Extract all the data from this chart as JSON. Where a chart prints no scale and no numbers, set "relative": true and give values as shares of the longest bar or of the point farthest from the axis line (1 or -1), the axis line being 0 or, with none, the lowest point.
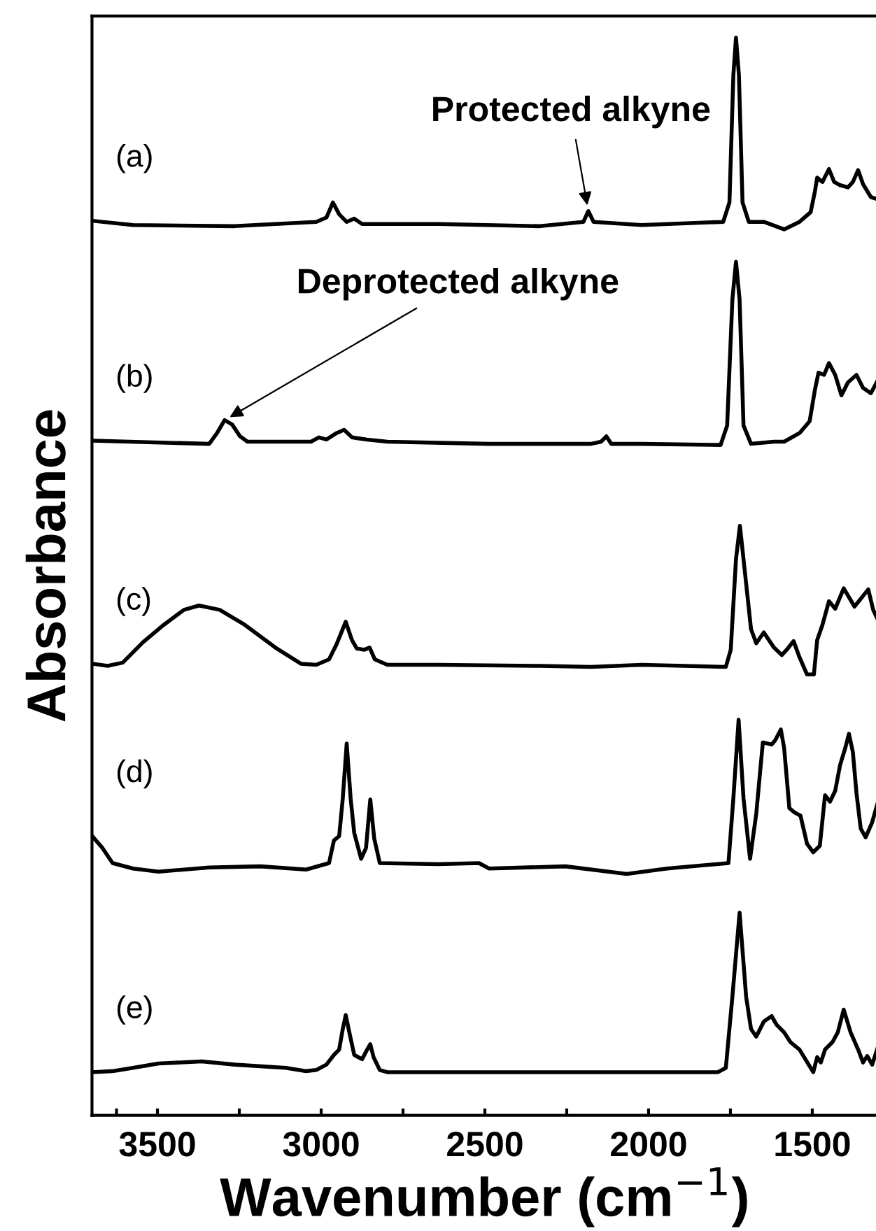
{
  "chart_data": {
    "type": "line",
    "relative": true,
    "xlabel": "Wavenumber (cm$^{−1}$)",
    "ylabel": "Absorbance",
    "xlim": [
      3700,
      1300
    ],
    "xticks": [
      {
        "value": 3625,
        "label": null
      },
      3500,
      {
        "value": 3250,
        "label": null
      },
      3000,
      {
        "value": 2750,
        "label": null
      },
      2500,
      {
        "value": 2250,
        "label": null
      },
      2000,
      {
        "value": 1750,
        "label": null
      },
      1500
    ],
    "tick_labels": "x",
    "grid": false,
    "marker": "none",
    "line_style": "solid",
    "annotations": [
      {
        "text": "Protected alkyne",
        "x": 2184,
        "y": 0.839
      },
      {
        "text": "Deprotected alkyne",
        "x": 3295,
        "y": 0.645
      }
    ],
    "series": [
      {
        "name": "(a)",
        "color": "#000000",
        "x": [
          3699,
          3575,
          3264,
          3015,
          2984,
          2964,
          2945,
          2922,
          2899,
          2875,
          2642,
          2331,
          2199,
          2184,
          2168,
          2021,
          1772,
          1753,
          1741,
          1733,
          1724,
          1713,
          1694,
          1648,
          1586,
          1539,
          1505,
          1492,
          1485,
          1469,
          1449,
          1433,
          1415,
          1391,
          1376,
          1360,
          1345,
          1321,
          1300
        ],
        "values": [
          0.83,
          0.826,
          0.825,
          0.829,
          0.833,
          0.847,
          0.836,
          0.829,
          0.832,
          0.827,
          0.827,
          0.825,
          0.829,
          0.839,
          0.829,
          0.826,
          0.829,
          0.847,
          0.965,
          1.0,
          0.965,
          0.847,
          0.829,
          0.829,
          0.822,
          0.829,
          0.838,
          0.857,
          0.87,
          0.866,
          0.878,
          0.866,
          0.863,
          0.861,
          0.866,
          0.877,
          0.864,
          0.852,
          0.85
        ]
      },
      {
        "name": "(b)",
        "color": "#000000",
        "x": [
          3699,
          3342,
          3318,
          3295,
          3272,
          3248,
          3225,
          3031,
          3007,
          2984,
          2953,
          2930,
          2906,
          2860,
          2798,
          2487,
          2176,
          2145,
          2129,
          2114,
          2021,
          1780,
          1760,
          1744,
          1733,
          1722,
          1710,
          1687,
          1617,
          1586,
          1539,
          1508,
          1492,
          1481,
          1464,
          1449,
          1430,
          1411,
          1391,
          1365,
          1345,
          1321,
          1300
        ],
        "values": [
          0.626,
          0.623,
          0.633,
          0.645,
          0.641,
          0.63,
          0.625,
          0.625,
          0.629,
          0.627,
          0.633,
          0.636,
          0.629,
          0.627,
          0.625,
          0.623,
          0.623,
          0.625,
          0.63,
          0.623,
          0.623,
          0.622,
          0.64,
          0.757,
          0.792,
          0.757,
          0.64,
          0.623,
          0.625,
          0.625,
          0.633,
          0.644,
          0.673,
          0.689,
          0.687,
          0.698,
          0.687,
          0.668,
          0.68,
          0.687,
          0.675,
          0.67,
          0.682
        ]
      },
      {
        "name": "(c)",
        "color": "#000000",
        "x": [
          3699,
          3652,
          3606,
          3544,
          3481,
          3419,
          3373,
          3310,
          3233,
          3140,
          3062,
          3015,
          2976,
          2953,
          2925,
          2906,
          2891,
          2868,
          2852,
          2836,
          2798,
          2642,
          2331,
          2176,
          2021,
          1764,
          1749,
          1733,
          1721,
          1710,
          1687,
          1671,
          1648,
          1617,
          1593,
          1578,
          1557,
          1539,
          1516,
          1495,
          1485,
          1469,
          1449,
          1430,
          1404,
          1371,
          1329,
          1314,
          1300
        ],
        "values": [
          0.419,
          0.417,
          0.42,
          0.439,
          0.455,
          0.469,
          0.473,
          0.469,
          0.455,
          0.434,
          0.419,
          0.418,
          0.423,
          0.437,
          0.458,
          0.441,
          0.433,
          0.432,
          0.434,
          0.423,
          0.418,
          0.418,
          0.417,
          0.416,
          0.418,
          0.416,
          0.432,
          0.516,
          0.547,
          0.516,
          0.451,
          0.438,
          0.448,
          0.434,
          0.427,
          0.432,
          0.44,
          0.425,
          0.409,
          0.409,
          0.441,
          0.455,
          0.477,
          0.47,
          0.489,
          0.472,
          0.488,
          0.469,
          0.46
        ]
      },
      {
        "name": "(d)",
        "color": "#000000",
        "x": [
          3699,
          3668,
          3637,
          3575,
          3497,
          3342,
          3186,
          3046,
          2976,
          2961,
          2945,
          2934,
          2922,
          2910,
          2899,
          2878,
          2863,
          2850,
          2838,
          2821,
          2642,
          2518,
          2487,
          2254,
          2067,
          1943,
          1756,
          1741,
          1725,
          1710,
          1690,
          1671,
          1651,
          1624,
          1613,
          1596,
          1586,
          1570,
          1554,
          1536,
          1516,
          1497,
          1477,
          1461,
          1446,
          1430,
          1415,
          1399,
          1388,
          1376,
          1365,
          1352,
          1337,
          1318,
          1300
        ],
        "values": [
          0.259,
          0.248,
          0.234,
          0.229,
          0.226,
          0.23,
          0.231,
          0.228,
          0.234,
          0.255,
          0.259,
          0.294,
          0.345,
          0.294,
          0.262,
          0.238,
          0.248,
          0.293,
          0.257,
          0.234,
          0.233,
          0.234,
          0.229,
          0.231,
          0.224,
          0.229,
          0.234,
          0.294,
          0.367,
          0.294,
          0.238,
          0.28,
          0.346,
          0.344,
          0.348,
          0.358,
          0.341,
          0.285,
          0.281,
          0.278,
          0.252,
          0.244,
          0.25,
          0.297,
          0.291,
          0.301,
          0.325,
          0.341,
          0.354,
          0.337,
          0.299,
          0.266,
          0.258,
          0.271,
          0.29
        ]
      },
      {
        "name": "(e)",
        "color": "#000000",
        "x": [
          3699,
          3637,
          3575,
          3497,
          3365,
          3264,
          3108,
          3046,
          3015,
          2984,
          2961,
          2945,
          2934,
          2925,
          2914,
          2899,
          2875,
          2863,
          2850,
          2840,
          2821,
          2798,
          2487,
          2176,
          2021,
          1788,
          1764,
          1744,
          1722,
          1702,
          1687,
          1671,
          1648,
          1624,
          1609,
          1586,
          1567,
          1539,
          1511,
          1497,
          1485,
          1474,
          1461,
          1438,
          1422,
          1404,
          1383,
          1360,
          1345,
          1332,
          1317,
          1300
        ],
        "values": [
          0.04,
          0.041,
          0.044,
          0.048,
          0.05,
          0.047,
          0.044,
          0.041,
          0.042,
          0.047,
          0.056,
          0.061,
          0.08,
          0.093,
          0.077,
          0.056,
          0.052,
          0.059,
          0.066,
          0.054,
          0.042,
          0.04,
          0.04,
          0.04,
          0.04,
          0.04,
          0.044,
          0.11,
          0.188,
          0.11,
          0.08,
          0.073,
          0.087,
          0.092,
          0.084,
          0.077,
          0.068,
          0.061,
          0.047,
          0.04,
          0.054,
          0.049,
          0.061,
          0.068,
          0.077,
          0.098,
          0.077,
          0.061,
          0.049,
          0.055,
          0.047,
          0.063
        ]
      }
    ]
  }
}
